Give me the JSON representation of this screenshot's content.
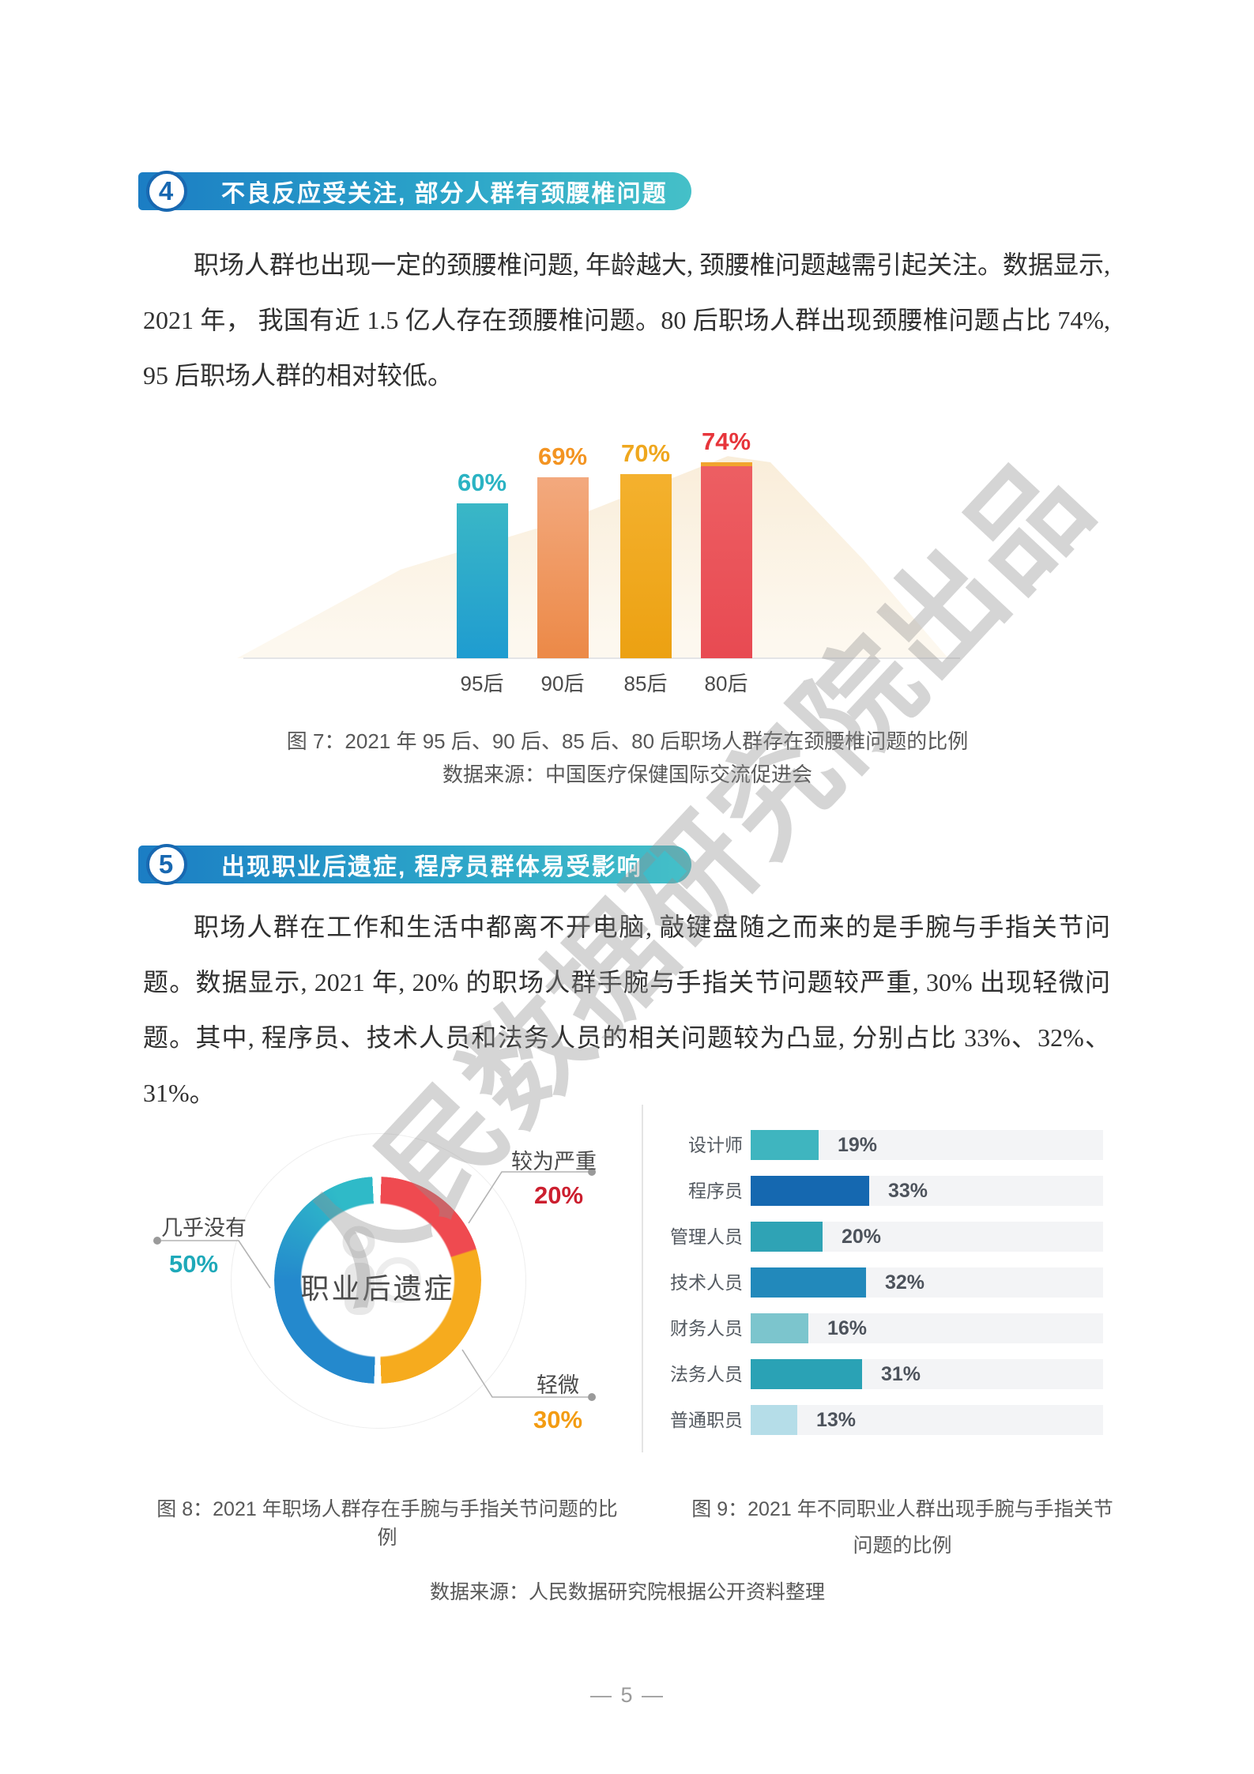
{
  "page": {
    "number_label": "— 5 —"
  },
  "watermark_text": "人民数据研究院出品",
  "sections": {
    "s4": {
      "badge": "4",
      "title": "不良反应受关注, 部分人群有颈腰椎问题",
      "paragraph": "职场人群也出现一定的颈腰椎问题, 年龄越大, 颈腰椎问题越需引起关注。数据显示, 2021 年， 我国有近 1.5 亿人存在颈腰椎问题。80 后职场人群出现颈腰椎问题占比 74%, 95 后职场人群的相对较低。"
    },
    "s5": {
      "badge": "5",
      "title": "出现职业后遗症, 程序员群体易受影响",
      "paragraph": "职场人群在工作和生活中都离不开电脑, 敲键盘随之而来的是手腕与手指关节问题。数据显示, 2021 年, 20% 的职场人群手腕与手指关节问题较严重, 30% 出现轻微问题。其中, 程序员、技术人员和法务人员的相关问题较为凸显, 分别占比 33%、32%、31%。"
    }
  },
  "fig7": {
    "caption": "图 7：2021 年 95 后、90 后、85 后、80 后职场人群存在颈腰椎问题的比例",
    "source": "数据来源：中国医疗保健国际交流促进会",
    "bars": [
      {
        "category": "95后",
        "value": 60,
        "display": "60%",
        "bar_top": "#3ab7c6",
        "bar_bottom": "#1f9cd0",
        "label_color": "#2ab3c3"
      },
      {
        "category": "90后",
        "value": 69,
        "display": "69%",
        "bar_top": "#f3a97e",
        "bar_bottom": "#ec8947",
        "label_color": "#f39422"
      },
      {
        "category": "85后",
        "value": 70,
        "display": "70%",
        "bar_top": "#f4b12e",
        "bar_bottom": "#eca112",
        "label_color": "#efa71e"
      },
      {
        "category": "80后",
        "value": 74,
        "display": "74%",
        "bar_top": "#ed5f63",
        "bar_bottom": "#e84a52",
        "label_color": "#e7353b",
        "cap": "#f1a42e"
      }
    ]
  },
  "fig8": {
    "center_label": "职业后遗症",
    "caption": "图 8：2021 年职场人群存在手腕与手指关节问题的比例",
    "segments": [
      {
        "label": "较为严重",
        "value": 20,
        "display": "20%",
        "color": "#ef4a50",
        "value_color": "#cc1f2f"
      },
      {
        "label": "轻微",
        "value": 30,
        "display": "30%",
        "color": "#f6ab1e",
        "value_color": "#f39c12"
      },
      {
        "label": "几乎没有",
        "value": 50,
        "display": "50%",
        "color_start": "#2489cd",
        "color_end": "#2fbac8",
        "value_color": "#1ea9b9"
      }
    ]
  },
  "fig9": {
    "caption_line1": "图 9：2021 年不同职业人群出现手腕与手指关节",
    "caption_line2": "问题的比例",
    "rows": [
      {
        "label": "设计师",
        "value": 19,
        "display": "19%",
        "color": "#3fb5bf"
      },
      {
        "label": "程序员",
        "value": 33,
        "display": "33%",
        "color": "#1568b0"
      },
      {
        "label": "管理人员",
        "value": 20,
        "display": "20%",
        "color": "#2fa3b5"
      },
      {
        "label": "技术人员",
        "value": 32,
        "display": "32%",
        "color": "#2289bb"
      },
      {
        "label": "财务人员",
        "value": 16,
        "display": "16%",
        "color": "#7cc5cd"
      },
      {
        "label": "法务人员",
        "value": 31,
        "display": "31%",
        "color": "#2aa2b5"
      },
      {
        "label": "普通职员",
        "value": 13,
        "display": "13%",
        "color": "#b5dde8"
      }
    ]
  },
  "footer_source": "数据来源：人民数据研究院根据公开资料整理",
  "chart_data": [
    {
      "type": "bar",
      "title": "图 7：2021 年 95 后、90 后、85 后、80 后职场人群存在颈腰椎问题的比例",
      "categories": [
        "95后",
        "90后",
        "85后",
        "80后"
      ],
      "values": [
        60,
        69,
        70,
        74
      ],
      "unit": "%",
      "xlabel": "",
      "ylabel": "",
      "ylim": [
        0,
        80
      ],
      "grid": false,
      "source": "中国医疗保健国际交流促进会"
    },
    {
      "type": "pie",
      "title": "图 8：2021 年职场人群存在手腕与手指关节问题的比例",
      "center_label": "职业后遗症",
      "labels": [
        "较为严重",
        "轻微",
        "几乎没有"
      ],
      "values": [
        20,
        30,
        50
      ],
      "unit": "%",
      "legend_position": "callouts"
    },
    {
      "type": "bar",
      "orientation": "horizontal",
      "title": "图 9：2021 年不同职业人群出现手腕与手指关节问题的比例",
      "categories": [
        "设计师",
        "程序员",
        "管理人员",
        "技术人员",
        "财务人员",
        "法务人员",
        "普通职员"
      ],
      "values": [
        19,
        33,
        20,
        32,
        16,
        31,
        13
      ],
      "unit": "%",
      "xlim": [
        0,
        100
      ],
      "grid": false
    }
  ]
}
